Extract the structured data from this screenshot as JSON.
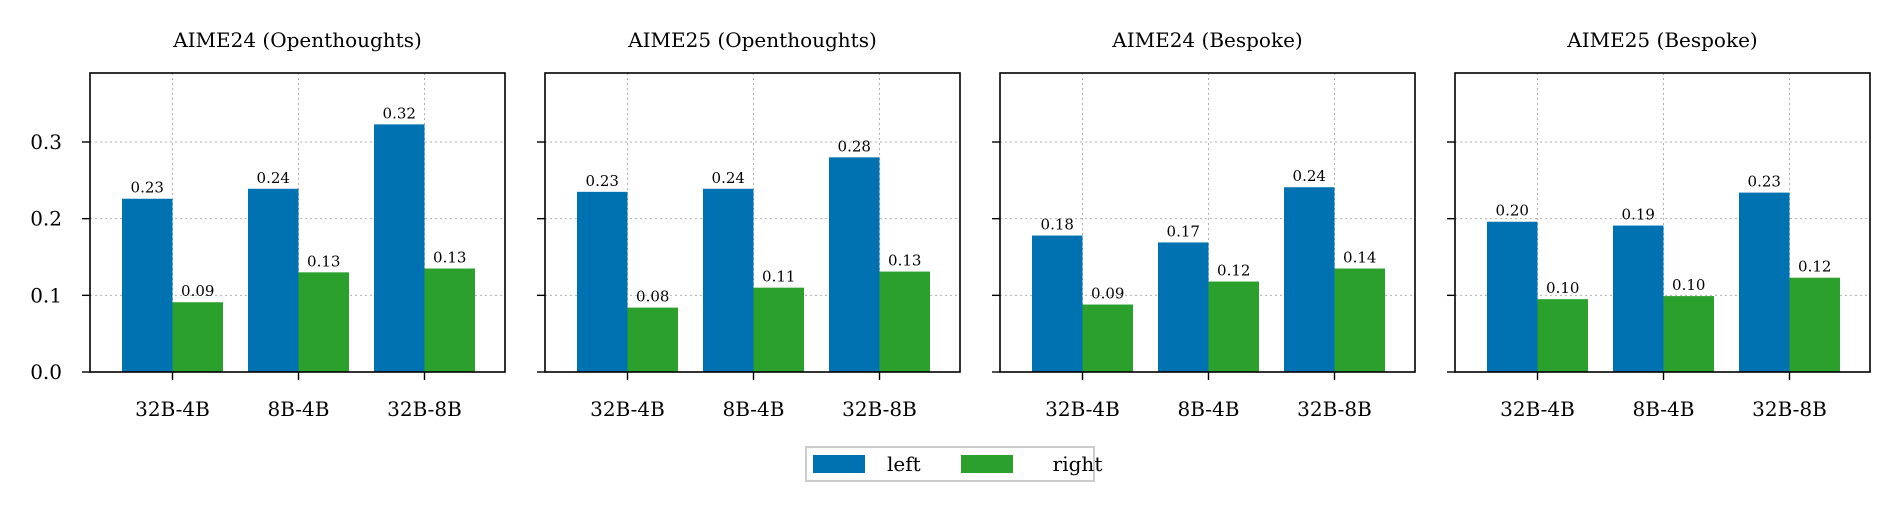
{
  "chart_data": {
    "type": "bar",
    "ylim": [
      0,
      0.39
    ],
    "yticks": [
      0.0,
      0.1,
      0.2,
      0.3
    ],
    "ytick_labels": [
      "0.0",
      "0.1",
      "0.2",
      "0.3"
    ],
    "grid": true,
    "legend": {
      "placement": "bottom-center",
      "entries": [
        {
          "name": "left",
          "color": "#0072b2"
        },
        {
          "name": "right",
          "color": "#2ca02c"
        }
      ]
    },
    "panels": [
      {
        "title": "AIME24 (Openthoughts)",
        "categories": [
          "32B-4B",
          "8B-4B",
          "32B-8B"
        ],
        "series": [
          {
            "name": "left",
            "values": [
              0.226,
              0.239,
              0.323
            ],
            "labels": [
              "0.23",
              "0.24",
              "0.32"
            ]
          },
          {
            "name": "right",
            "values": [
              0.091,
              0.13,
              0.135
            ],
            "labels": [
              "0.09",
              "0.13",
              "0.13"
            ]
          }
        ]
      },
      {
        "title": "AIME25 (Openthoughts)",
        "categories": [
          "32B-4B",
          "8B-4B",
          "32B-8B"
        ],
        "series": [
          {
            "name": "left",
            "values": [
              0.235,
              0.239,
              0.28
            ],
            "labels": [
              "0.23",
              "0.24",
              "0.28"
            ]
          },
          {
            "name": "right",
            "values": [
              0.084,
              0.11,
              0.131
            ],
            "labels": [
              "0.08",
              "0.11",
              "0.13"
            ]
          }
        ]
      },
      {
        "title": "AIME24 (Bespoke)",
        "categories": [
          "32B-4B",
          "8B-4B",
          "32B-8B"
        ],
        "series": [
          {
            "name": "left",
            "values": [
              0.178,
              0.169,
              0.241
            ],
            "labels": [
              "0.18",
              "0.17",
              "0.24"
            ]
          },
          {
            "name": "right",
            "values": [
              0.088,
              0.118,
              0.135
            ],
            "labels": [
              "0.09",
              "0.12",
              "0.14"
            ]
          }
        ]
      },
      {
        "title": "AIME25 (Bespoke)",
        "categories": [
          "32B-4B",
          "8B-4B",
          "32B-8B"
        ],
        "series": [
          {
            "name": "left",
            "values": [
              0.196,
              0.191,
              0.234
            ],
            "labels": [
              "0.20",
              "0.19",
              "0.23"
            ]
          },
          {
            "name": "right",
            "values": [
              0.095,
              0.099,
              0.123
            ],
            "labels": [
              "0.10",
              "0.10",
              "0.12"
            ]
          }
        ]
      }
    ]
  }
}
